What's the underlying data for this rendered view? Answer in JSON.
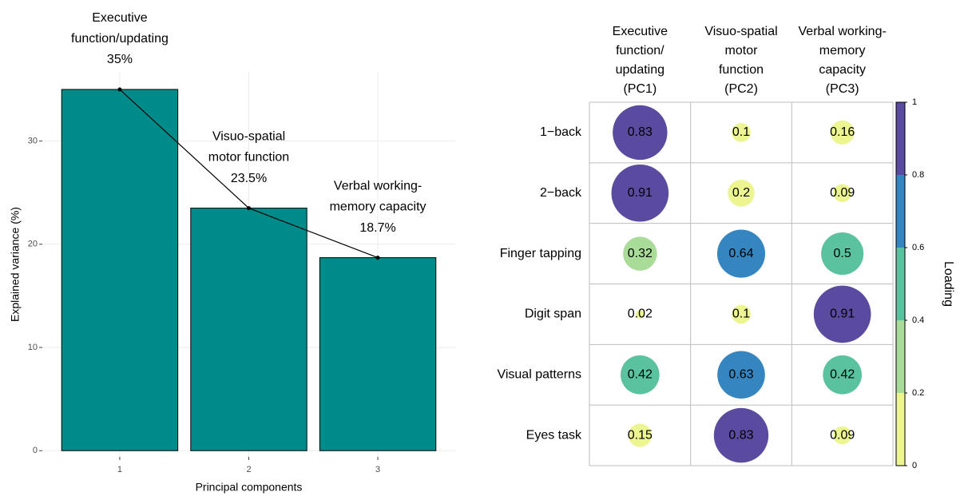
{
  "chart_data": [
    {
      "type": "bar",
      "x_label": "Principal components",
      "y_label": "Explained variance (%)",
      "categories": [
        "1",
        "2",
        "3"
      ],
      "values": [
        35,
        23.5,
        18.7
      ],
      "value_labels": [
        "35%",
        "23.5%",
        "18.7%"
      ],
      "annotations": [
        "Executive\nfunction/updating",
        "Visuo-spatial\nmotor function",
        "Verbal working-\nmemory capacity"
      ],
      "color": "#008b8b",
      "line_color": "#000000",
      "ylim": [
        -0.6,
        36.7
      ],
      "yticks": [
        0,
        10,
        20,
        30
      ],
      "grid": true
    },
    {
      "type": "bubble-matrix",
      "rows": [
        "1−back",
        "2−back",
        "Finger tapping",
        "Digit span",
        "Visual patterns",
        "Eyes task"
      ],
      "columns": [
        "Executive\nfunction/\nupdating\n(PC1)",
        "Visuo-spatial\nmotor\nfunction\n(PC2)",
        "Verbal working-\nmemory\ncapacity\n(PC3)"
      ],
      "values": [
        [
          0.83,
          0.1,
          0.16
        ],
        [
          0.91,
          0.2,
          0.09
        ],
        [
          0.32,
          0.64,
          0.5
        ],
        [
          0.02,
          0.1,
          0.91
        ],
        [
          0.42,
          0.63,
          0.42
        ],
        [
          0.15,
          0.83,
          0.09
        ]
      ],
      "legend_title": "Loading",
      "clim": [
        0,
        1
      ],
      "cticks": [
        0,
        0.2,
        0.4,
        0.6,
        0.8,
        1
      ],
      "colors": [
        "#ecf58f",
        "#a9dc98",
        "#5bc2a0",
        "#3585c0",
        "#5a4ba0"
      ]
    }
  ]
}
